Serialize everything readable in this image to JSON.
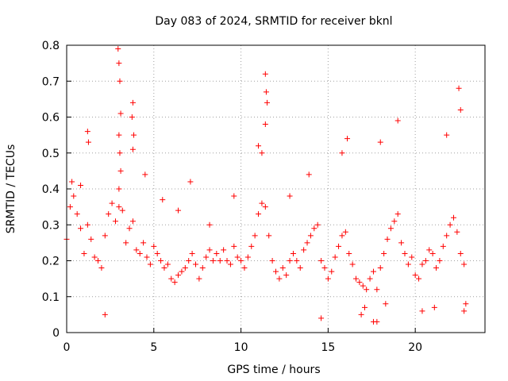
{
  "chart_data": {
    "type": "scatter",
    "title": "Day 083 of 2024, SRMTID for receiver bknl",
    "xlabel": "GPS time / hours",
    "ylabel": "SRMTID / TECUs",
    "xlim": [
      0,
      24
    ],
    "ylim": [
      0,
      0.8
    ],
    "x_ticks": [
      "0",
      "5",
      "10",
      "15",
      "20"
    ],
    "y_ticks": [
      "0",
      "0.1",
      "0.2",
      "0.3",
      "0.4",
      "0.5",
      "0.6",
      "0.7",
      "0.8"
    ],
    "grid": true,
    "marker": "+",
    "color": "#ff0000",
    "series": [
      {
        "name": "SRMTID",
        "x": [
          0.0,
          0.2,
          0.4,
          0.6,
          0.8,
          1.0,
          1.2,
          1.4,
          1.6,
          1.8,
          2.0,
          2.2,
          2.4,
          2.6,
          2.8,
          3.0,
          3.2,
          3.4,
          3.6,
          3.8,
          4.0,
          4.2,
          4.4,
          4.6,
          4.8,
          5.0,
          5.2,
          5.4,
          5.6,
          5.8,
          6.0,
          6.2,
          6.4,
          6.6,
          6.8,
          7.0,
          7.2,
          7.4,
          7.6,
          7.8,
          8.0,
          8.2,
          8.4,
          8.6,
          8.8,
          9.0,
          9.2,
          9.4,
          9.6,
          9.8,
          10.0,
          10.2,
          10.4,
          10.6,
          10.8,
          11.0,
          11.2,
          11.4,
          11.6,
          11.8,
          12.0,
          12.2,
          12.4,
          12.6,
          12.8,
          13.0,
          13.2,
          13.4,
          13.6,
          13.8,
          14.0,
          14.2,
          14.4,
          14.6,
          14.8,
          15.0,
          15.2,
          15.4,
          15.6,
          15.8,
          16.0,
          16.2,
          16.4,
          16.6,
          16.8,
          17.0,
          17.2,
          17.4,
          17.6,
          17.8,
          18.0,
          18.2,
          18.4,
          18.6,
          18.8,
          19.0,
          19.2,
          19.4,
          19.6,
          19.8,
          20.0,
          20.2,
          20.4,
          20.6,
          20.8,
          21.0,
          21.2,
          21.4,
          21.6,
          21.8,
          22.0,
          22.2,
          22.4,
          22.6,
          22.8,
          2.95,
          3.0,
          3.05,
          3.1,
          3.0,
          3.05,
          3.1,
          3.0,
          3.8,
          3.75,
          3.85,
          3.8,
          11.4,
          11.45,
          11.5,
          11.4,
          11.0,
          11.2,
          1.2,
          1.25,
          15.8,
          16.1,
          18.0,
          19.0,
          21.8,
          22.5,
          22.6,
          0.3,
          0.8,
          5.5,
          7.1,
          8.2,
          9.6,
          12.8,
          13.9,
          14.6,
          16.9,
          17.1,
          17.6,
          17.8,
          18.3,
          20.4,
          21.1,
          22.8,
          22.9,
          2.2,
          4.5,
          6.4
        ],
        "y": [
          0.26,
          0.35,
          0.38,
          0.33,
          0.29,
          0.22,
          0.3,
          0.26,
          0.21,
          0.2,
          0.18,
          0.27,
          0.33,
          0.36,
          0.31,
          0.35,
          0.34,
          0.25,
          0.29,
          0.31,
          0.23,
          0.22,
          0.25,
          0.21,
          0.19,
          0.24,
          0.22,
          0.2,
          0.18,
          0.19,
          0.15,
          0.14,
          0.16,
          0.17,
          0.18,
          0.2,
          0.22,
          0.19,
          0.15,
          0.18,
          0.21,
          0.23,
          0.2,
          0.22,
          0.2,
          0.23,
          0.2,
          0.19,
          0.24,
          0.21,
          0.2,
          0.18,
          0.21,
          0.24,
          0.27,
          0.33,
          0.36,
          0.35,
          0.27,
          0.2,
          0.17,
          0.15,
          0.18,
          0.16,
          0.2,
          0.22,
          0.2,
          0.18,
          0.23,
          0.25,
          0.27,
          0.29,
          0.3,
          0.2,
          0.18,
          0.15,
          0.17,
          0.21,
          0.24,
          0.27,
          0.28,
          0.22,
          0.19,
          0.15,
          0.14,
          0.13,
          0.12,
          0.15,
          0.17,
          0.12,
          0.18,
          0.22,
          0.26,
          0.29,
          0.31,
          0.33,
          0.25,
          0.22,
          0.19,
          0.21,
          0.16,
          0.15,
          0.19,
          0.2,
          0.23,
          0.22,
          0.18,
          0.2,
          0.24,
          0.27,
          0.3,
          0.32,
          0.28,
          0.22,
          0.19,
          0.79,
          0.75,
          0.7,
          0.61,
          0.55,
          0.5,
          0.45,
          0.4,
          0.64,
          0.6,
          0.55,
          0.51,
          0.72,
          0.67,
          0.64,
          0.58,
          0.52,
          0.5,
          0.56,
          0.53,
          0.5,
          0.54,
          0.53,
          0.59,
          0.55,
          0.68,
          0.62,
          0.42,
          0.41,
          0.37,
          0.42,
          0.3,
          0.38,
          0.38,
          0.44,
          0.04,
          0.05,
          0.07,
          0.03,
          0.03,
          0.08,
          0.06,
          0.07,
          0.06,
          0.08,
          0.05,
          0.44,
          0.34
        ]
      }
    ]
  }
}
